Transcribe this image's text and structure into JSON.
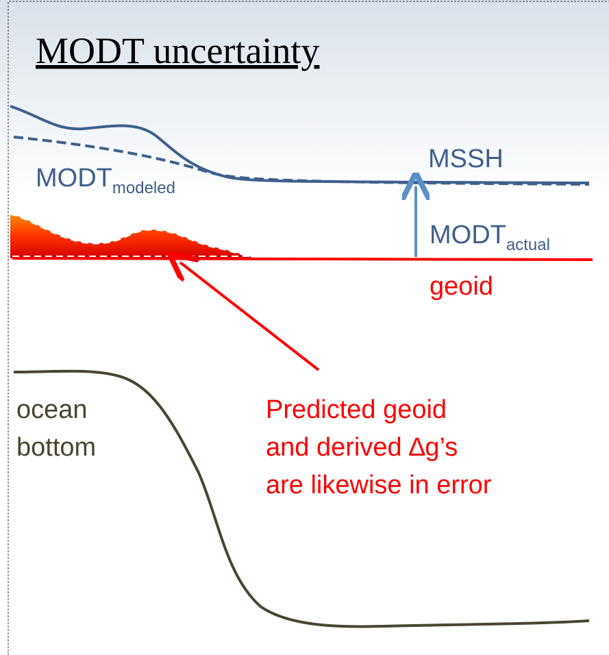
{
  "title": "MODT uncertainty",
  "mssh": "MSSH",
  "modeled": {
    "main": "MODT",
    "sub": "modeled"
  },
  "actual": {
    "main": "MODT",
    "sub": "actual"
  },
  "geoid": "geoid",
  "bottom": [
    "ocean",
    "bottom"
  ],
  "note": [
    "Predicted geoid",
    "and derived ∆g’s",
    "are likewise in error"
  ]
}
